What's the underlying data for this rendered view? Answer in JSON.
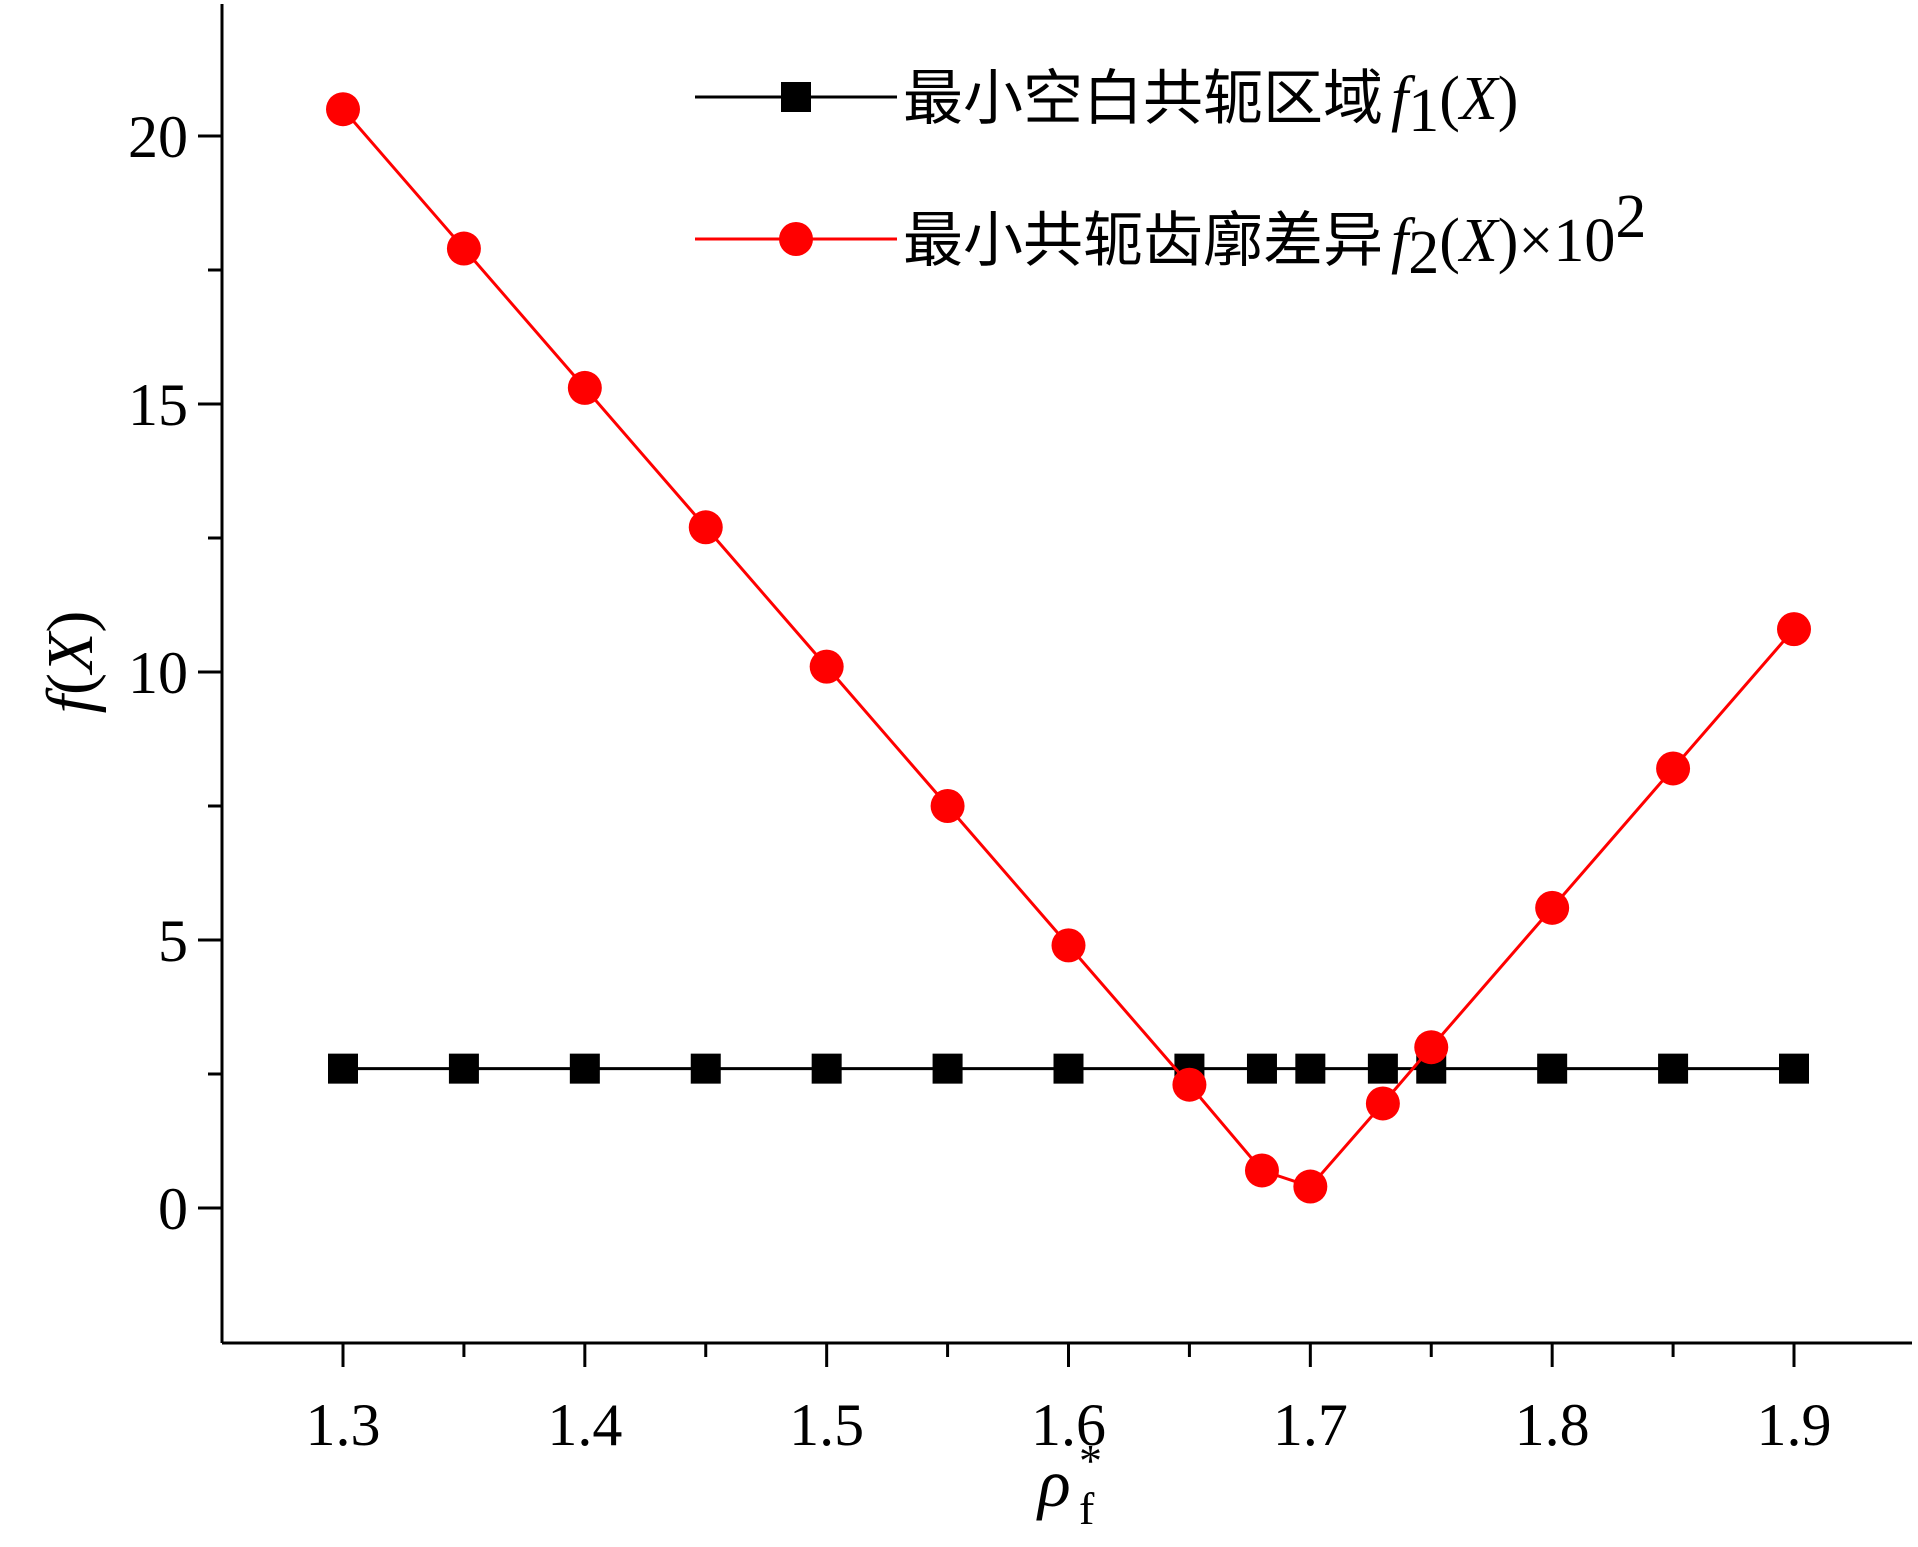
{
  "chart_data": {
    "type": "line",
    "title": "",
    "xlabel": {
      "base": "ρ",
      "sub": "f",
      "sup": "*"
    },
    "ylabel": {
      "func": "f",
      "arg": "X"
    },
    "xlim": [
      1.25,
      1.95
    ],
    "ylim": [
      -2.5,
      22.5
    ],
    "x_ticks": [
      1.3,
      1.4,
      1.5,
      1.6,
      1.7,
      1.8,
      1.9
    ],
    "x_tick_labels": [
      "1.3",
      "1.4",
      "1.5",
      "1.6",
      "1.7",
      "1.8",
      "1.9"
    ],
    "x_minor_ticks": [
      1.35,
      1.45,
      1.55,
      1.65,
      1.75,
      1.85
    ],
    "y_ticks": [
      0,
      5,
      10,
      15,
      20
    ],
    "y_tick_labels": [
      "0",
      "5",
      "10",
      "15",
      "20"
    ],
    "y_minor_ticks": [
      2.5,
      7.5,
      12.5,
      17.5
    ],
    "grid": false,
    "legend_position": "top-right",
    "series": [
      {
        "name": "最小空白共轭区域f1(X)",
        "legend": {
          "cn": "最小空白共轭区域",
          "func": "f",
          "sub": "1",
          "arg": "X",
          "suffix": ""
        },
        "color": "#000000",
        "marker": "square",
        "x": [
          1.3,
          1.35,
          1.4,
          1.45,
          1.5,
          1.55,
          1.6,
          1.65,
          1.68,
          1.7,
          1.73,
          1.75,
          1.8,
          1.85,
          1.9
        ],
        "y": [
          2.6,
          2.6,
          2.6,
          2.6,
          2.6,
          2.6,
          2.6,
          2.6,
          2.6,
          2.6,
          2.6,
          2.6,
          2.6,
          2.6,
          2.6
        ]
      },
      {
        "name": "最小共轭齿廓差异f2(X)×10²",
        "legend": {
          "cn": "最小共轭齿廓差异",
          "func": "f",
          "sub": "2",
          "arg": "X",
          "suffix": "×10",
          "suffix_sup": "2"
        },
        "color": "#ff0000",
        "marker": "circle",
        "x": [
          1.3,
          1.35,
          1.4,
          1.45,
          1.5,
          1.55,
          1.6,
          1.65,
          1.68,
          1.7,
          1.73,
          1.75,
          1.8,
          1.85,
          1.9
        ],
        "y": [
          20.5,
          17.9,
          15.3,
          12.7,
          10.1,
          7.5,
          4.9,
          2.3,
          0.7,
          0.4,
          1.95,
          3.0,
          5.6,
          8.2,
          10.8
        ]
      }
    ]
  }
}
